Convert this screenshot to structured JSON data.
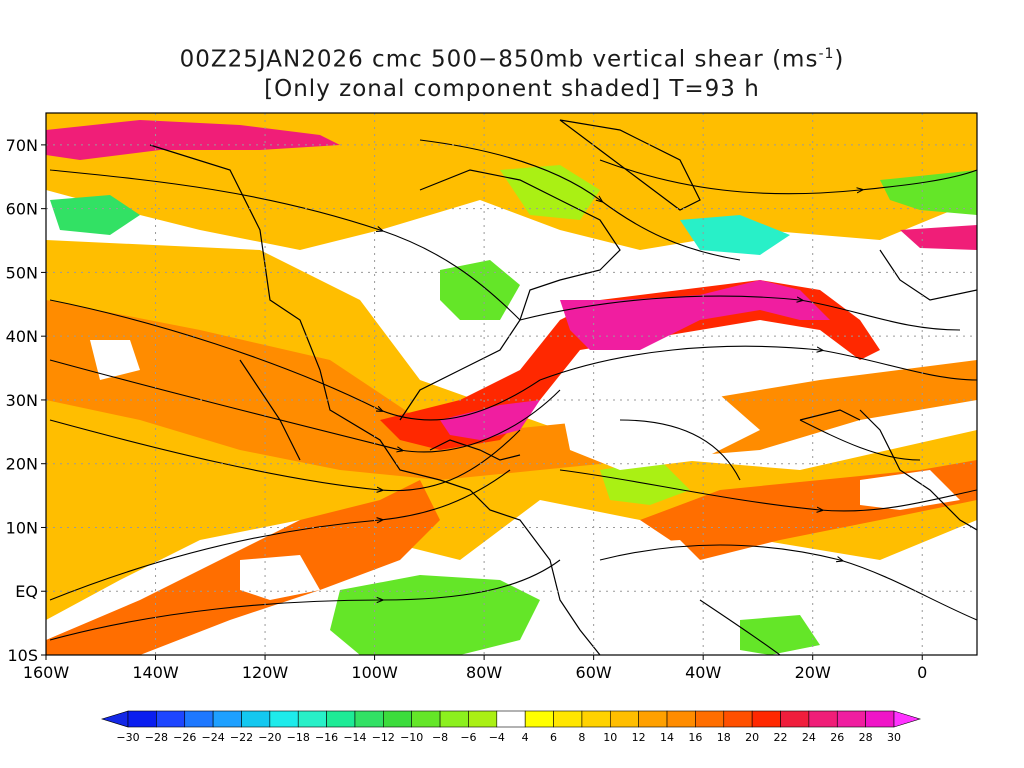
{
  "title": {
    "line1": "00Z25JAN2026 cmc 500−850mb vertical shear (ms",
    "line1_sup": "-1",
    "line1_end": ")",
    "line2": "[Only zonal component shaded] T=93 h"
  },
  "map": {
    "lon_range": [
      -160,
      10
    ],
    "lat_range": [
      -10,
      75
    ],
    "lon_labels": [
      {
        "lon": -160,
        "text": "160W"
      },
      {
        "lon": -140,
        "text": "140W"
      },
      {
        "lon": -120,
        "text": "120W"
      },
      {
        "lon": -100,
        "text": "100W"
      },
      {
        "lon": -80,
        "text": "80W"
      },
      {
        "lon": -60,
        "text": "60W"
      },
      {
        "lon": -40,
        "text": "40W"
      },
      {
        "lon": -20,
        "text": "20W"
      },
      {
        "lon": 0,
        "text": "0"
      }
    ],
    "lat_labels": [
      {
        "lat": 70,
        "text": "70N"
      },
      {
        "lat": 60,
        "text": "60N"
      },
      {
        "lat": 50,
        "text": "50N"
      },
      {
        "lat": 40,
        "text": "40N"
      },
      {
        "lat": 30,
        "text": "30N"
      },
      {
        "lat": 20,
        "text": "20N"
      },
      {
        "lat": 10,
        "text": "10N"
      },
      {
        "lat": 0,
        "text": "EQ"
      },
      {
        "lat": -10,
        "text": "10S"
      }
    ]
  },
  "colorbar": {
    "units": "ms-1",
    "labels": [
      "−30",
      "−28",
      "−26",
      "−24",
      "−22",
      "−20",
      "−18",
      "−16",
      "−14",
      "−12",
      "−10",
      "−8",
      "−6",
      "−4",
      "4",
      "6",
      "8",
      "10",
      "12",
      "14",
      "16",
      "18",
      "20",
      "22",
      "24",
      "26",
      "28",
      "30"
    ],
    "colors": [
      "#0a1ef0",
      "#1e46ff",
      "#1e78ff",
      "#1ea0ff",
      "#14c8f0",
      "#1eebeb",
      "#28f0c8",
      "#1eeb96",
      "#32e164",
      "#3cdc3c",
      "#64e628",
      "#8cf01e",
      "#aaf014",
      "#ffffff",
      "#ffff00",
      "#ffe600",
      "#ffd200",
      "#ffbe00",
      "#ffa000",
      "#ff8c00",
      "#ff6e00",
      "#ff5000",
      "#ff2800",
      "#f01e3c",
      "#f01e78",
      "#f01ea0",
      "#f014c8"
    ],
    "low_arrow_color": "#1428e6",
    "high_arrow_color": "#ff32ff"
  }
}
